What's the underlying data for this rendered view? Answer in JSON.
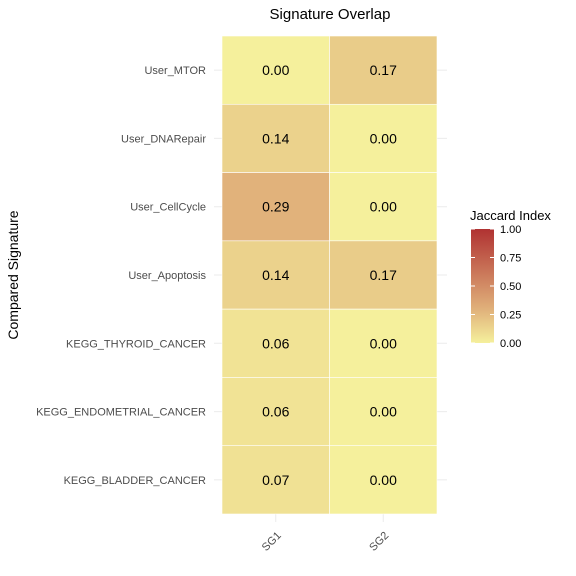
{
  "chart_data": {
    "type": "heatmap",
    "title": "Signature Overlap",
    "xlabel": "",
    "ylabel": "Compared Signature",
    "x_categories": [
      "SG1",
      "SG2"
    ],
    "y_categories": [
      "User_MTOR",
      "User_DNARepair",
      "User_CellCycle",
      "User_Apoptosis",
      "KEGG_THYROID_CANCER",
      "KEGG_ENDOMETRIAL_CANCER",
      "KEGG_BLADDER_CANCER"
    ],
    "values": [
      [
        0.0,
        0.17
      ],
      [
        0.14,
        0.0
      ],
      [
        0.29,
        0.0
      ],
      [
        0.14,
        0.17
      ],
      [
        0.06,
        0.0
      ],
      [
        0.06,
        0.0
      ],
      [
        0.07,
        0.0
      ]
    ],
    "cell_labels": [
      [
        "0.00",
        "0.17"
      ],
      [
        "0.14",
        "0.00"
      ],
      [
        "0.29",
        "0.00"
      ],
      [
        "0.14",
        "0.17"
      ],
      [
        "0.06",
        "0.00"
      ],
      [
        "0.06",
        "0.00"
      ],
      [
        "0.07",
        "0.00"
      ]
    ],
    "legend": {
      "title": "Jaccard Index",
      "ticks": [
        "1.00",
        "0.75",
        "0.50",
        "0.25",
        "0.00"
      ],
      "tick_values": [
        1.0,
        0.75,
        0.5,
        0.25,
        0.0
      ],
      "range": [
        0,
        1
      ],
      "placement": "right"
    },
    "colors": {
      "low": "#f5f09c",
      "mid": "#e0b07a",
      "high": "#b03232",
      "grid": "#ebebeb",
      "cell_border": "#ffffff"
    },
    "grid": true
  }
}
